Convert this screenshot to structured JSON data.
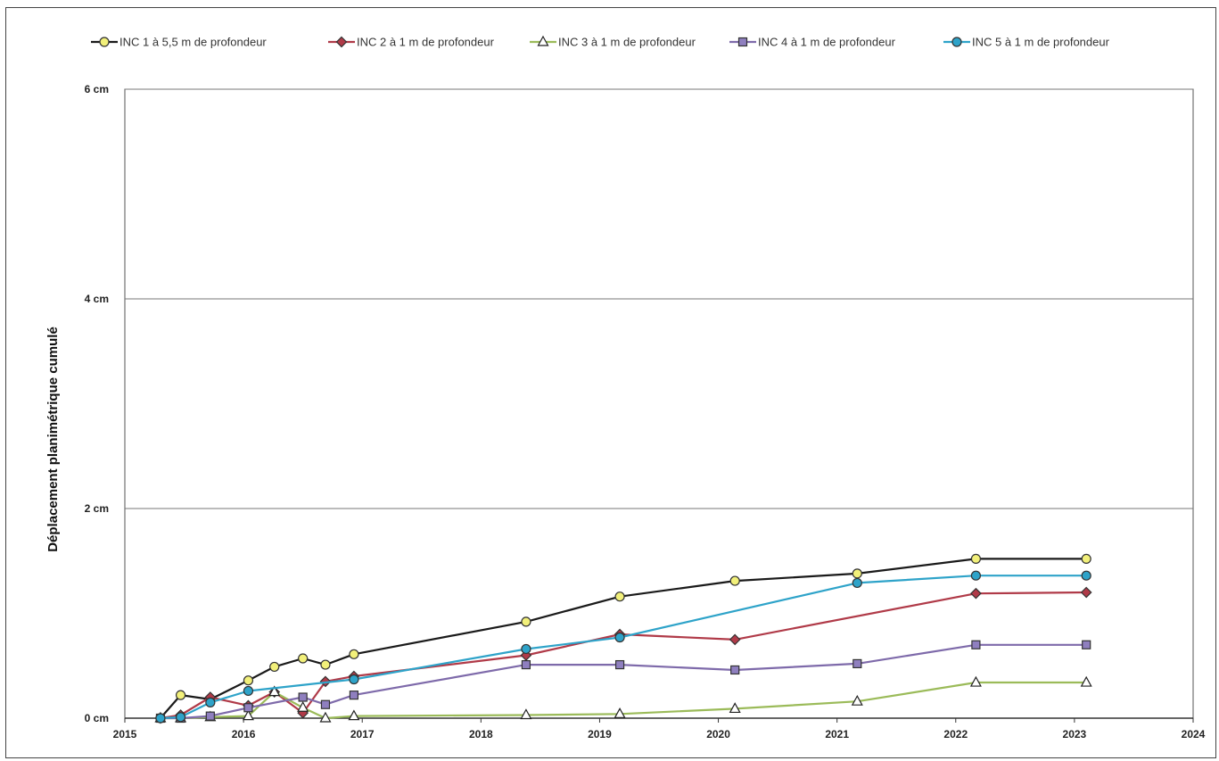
{
  "chart_data": {
    "type": "line",
    "title": "",
    "xlabel": "",
    "ylabel": "Déplacement planimétrique cumulé",
    "xlim": [
      2015,
      2024
    ],
    "ylim": [
      0,
      6
    ],
    "x_ticks": [
      "2015",
      "2016",
      "2017",
      "2018",
      "2019",
      "2020",
      "2021",
      "2022",
      "2023",
      "2024"
    ],
    "y_ticks": [
      {
        "value": 0,
        "label": "0 cm"
      },
      {
        "value": 2,
        "label": "2 cm"
      },
      {
        "value": 4,
        "label": "4 cm"
      },
      {
        "value": 6,
        "label": "6 cm"
      }
    ],
    "grid": "horizontal",
    "legend_position": "top",
    "series": [
      {
        "name": "INC 1 à 5,5 m de profondeur",
        "color": "#1a1a1a",
        "marker": "circle",
        "marker_fill": "#f2f07a",
        "x": [
          2015.3,
          2015.47,
          2015.72,
          2016.04,
          2016.26,
          2016.5,
          2016.69,
          2016.93,
          2018.38,
          2019.17,
          2020.14,
          2021.17,
          2022.17,
          2023.1
        ],
        "y": [
          0.0,
          0.22,
          0.18,
          0.36,
          0.49,
          0.57,
          0.51,
          0.61,
          0.92,
          1.16,
          1.31,
          1.38,
          1.52,
          1.52
        ]
      },
      {
        "name": "INC 2 à 1 m de profondeur",
        "color": "#b03a48",
        "marker": "diamond",
        "marker_fill": "#b03a48",
        "x": [
          2015.3,
          2015.47,
          2015.72,
          2016.04,
          2016.26,
          2016.5,
          2016.69,
          2016.93,
          2018.38,
          2019.17,
          2020.14,
          2022.17,
          2023.1
        ],
        "y": [
          0.0,
          0.03,
          0.2,
          0.12,
          0.25,
          0.05,
          0.35,
          0.4,
          0.6,
          0.8,
          0.75,
          1.19,
          1.2
        ]
      },
      {
        "name": "INC 3 à 1 m de profondeur",
        "color": "#9bbb59",
        "marker": "triangle",
        "marker_fill": "#ffffff",
        "x": [
          2015.3,
          2015.47,
          2015.72,
          2016.04,
          2016.26,
          2016.5,
          2016.69,
          2016.93,
          2018.38,
          2019.17,
          2020.14,
          2021.17,
          2022.17,
          2023.1
        ],
        "y": [
          0.0,
          0.0,
          0.01,
          0.02,
          0.25,
          0.1,
          0.0,
          0.02,
          0.03,
          0.04,
          0.09,
          0.16,
          0.34,
          0.34
        ]
      },
      {
        "name": "INC 4 à 1 m de profondeur",
        "color": "#7e6aaa",
        "marker": "square",
        "marker_fill": "#8f7fbf",
        "x": [
          2015.3,
          2015.47,
          2015.72,
          2016.04,
          2016.5,
          2016.69,
          2016.93,
          2018.38,
          2019.17,
          2020.14,
          2021.17,
          2022.17,
          2023.1
        ],
        "y": [
          0.0,
          0.0,
          0.02,
          0.1,
          0.2,
          0.13,
          0.22,
          0.51,
          0.51,
          0.46,
          0.52,
          0.7,
          0.7
        ]
      },
      {
        "name": "INC 5 à 1 m de profondeur",
        "color": "#2ea3c9",
        "marker": "circle",
        "marker_fill": "#2ea3c9",
        "x": [
          2015.3,
          2015.47,
          2015.72,
          2016.04,
          2016.93,
          2018.38,
          2019.17,
          2021.17,
          2022.17,
          2023.1
        ],
        "y": [
          0.0,
          0.01,
          0.15,
          0.26,
          0.37,
          0.66,
          0.77,
          1.29,
          1.36,
          1.36
        ]
      }
    ]
  }
}
